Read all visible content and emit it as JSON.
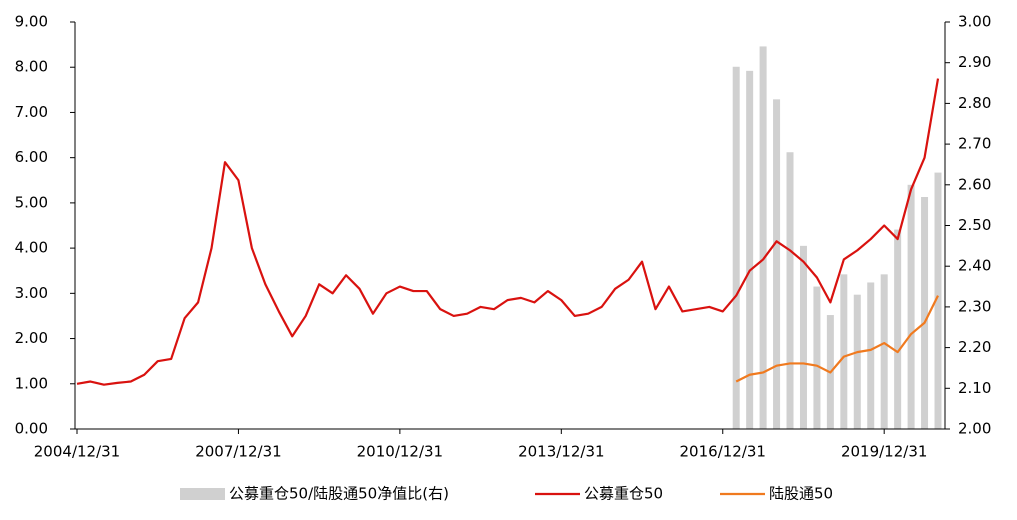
{
  "chart_data": {
    "type": "combo",
    "categories": [
      "2004/12/31",
      null,
      null,
      null,
      null,
      null,
      null,
      null,
      null,
      null,
      null,
      null,
      "2007/12/31",
      null,
      null,
      null,
      null,
      null,
      null,
      null,
      null,
      null,
      null,
      null,
      "2010/12/31",
      null,
      null,
      null,
      null,
      null,
      null,
      null,
      null,
      null,
      null,
      null,
      "2013/12/31",
      null,
      null,
      null,
      null,
      null,
      null,
      null,
      null,
      null,
      null,
      null,
      "2016/12/31",
      null,
      null,
      null,
      null,
      null,
      null,
      null,
      null,
      null,
      null,
      null,
      "2019/12/31",
      null,
      null,
      null,
      null
    ],
    "series": [
      {
        "name": "公募重仓50/陆股通50净值比(右)",
        "type": "bar",
        "axis": "y2",
        "color": "#d0d0d0",
        "values": [
          null,
          null,
          null,
          null,
          null,
          null,
          null,
          null,
          null,
          null,
          null,
          null,
          null,
          null,
          null,
          null,
          null,
          null,
          null,
          null,
          null,
          null,
          null,
          null,
          null,
          null,
          null,
          null,
          null,
          null,
          null,
          null,
          null,
          null,
          null,
          null,
          null,
          null,
          null,
          null,
          null,
          null,
          null,
          null,
          null,
          null,
          null,
          null,
          null,
          2.89,
          2.88,
          2.94,
          2.81,
          2.68,
          2.45,
          2.35,
          2.28,
          2.38,
          2.33,
          2.36,
          2.38,
          2.49,
          2.6,
          2.57,
          2.63
        ]
      },
      {
        "name": "公募重仓50",
        "type": "line",
        "color": "#d9120f",
        "values": [
          1.0,
          1.05,
          0.98,
          1.02,
          1.05,
          1.2,
          1.5,
          1.55,
          2.45,
          2.8,
          4.0,
          5.9,
          5.5,
          4.0,
          3.2,
          2.6,
          2.05,
          2.5,
          3.2,
          3.0,
          3.4,
          3.1,
          2.55,
          3.0,
          3.15,
          3.05,
          3.05,
          2.65,
          2.5,
          2.55,
          2.7,
          2.65,
          2.85,
          2.9,
          2.8,
          3.05,
          2.85,
          2.5,
          2.55,
          2.7,
          3.1,
          3.3,
          3.7,
          2.65,
          3.15,
          2.6,
          2.65,
          2.7,
          2.6,
          2.95,
          3.5,
          3.75,
          4.15,
          3.95,
          3.7,
          3.35,
          2.8,
          3.75,
          3.95,
          4.2,
          4.5,
          4.2,
          5.3,
          6.0,
          7.75
        ]
      },
      {
        "name": "陆股通50",
        "type": "line",
        "color": "#f07a1f",
        "values": [
          null,
          null,
          null,
          null,
          null,
          null,
          null,
          null,
          null,
          null,
          null,
          null,
          null,
          null,
          null,
          null,
          null,
          null,
          null,
          null,
          null,
          null,
          null,
          null,
          null,
          null,
          null,
          null,
          null,
          null,
          null,
          null,
          null,
          null,
          null,
          null,
          null,
          null,
          null,
          null,
          null,
          null,
          null,
          null,
          null,
          null,
          null,
          null,
          null,
          1.05,
          1.2,
          1.25,
          1.4,
          1.45,
          1.45,
          1.4,
          1.25,
          1.6,
          1.7,
          1.75,
          1.9,
          1.7,
          2.1,
          2.35,
          2.95
        ]
      }
    ],
    "ylim": [
      0,
      9
    ],
    "yticks": [
      {
        "value": 0,
        "label": "0.00"
      },
      {
        "value": 1,
        "label": "1.00"
      },
      {
        "value": 2,
        "label": "2.00"
      },
      {
        "value": 3,
        "label": "3.00"
      },
      {
        "value": 4,
        "label": "4.00"
      },
      {
        "value": 5,
        "label": "5.00"
      },
      {
        "value": 6,
        "label": "6.00"
      },
      {
        "value": 7,
        "label": "7.00"
      },
      {
        "value": 8,
        "label": "8.00"
      },
      {
        "value": 9,
        "label": "9.00"
      }
    ],
    "y2lim": [
      2,
      3
    ],
    "y2ticks": [
      {
        "value": 2,
        "label": "2.00"
      },
      {
        "value": 2.1,
        "label": "2.10"
      },
      {
        "value": 2.2,
        "label": "2.20"
      },
      {
        "value": 2.3,
        "label": "2.30"
      },
      {
        "value": 2.4,
        "label": "2.40"
      },
      {
        "value": 2.5,
        "label": "2.50"
      },
      {
        "value": 2.6,
        "label": "2.60"
      },
      {
        "value": 2.7,
        "label": "2.70"
      },
      {
        "value": 2.8,
        "label": "2.80"
      },
      {
        "value": 2.9,
        "label": "2.90"
      },
      {
        "value": 3,
        "label": "3.00"
      }
    ],
    "legend": "bottom"
  }
}
